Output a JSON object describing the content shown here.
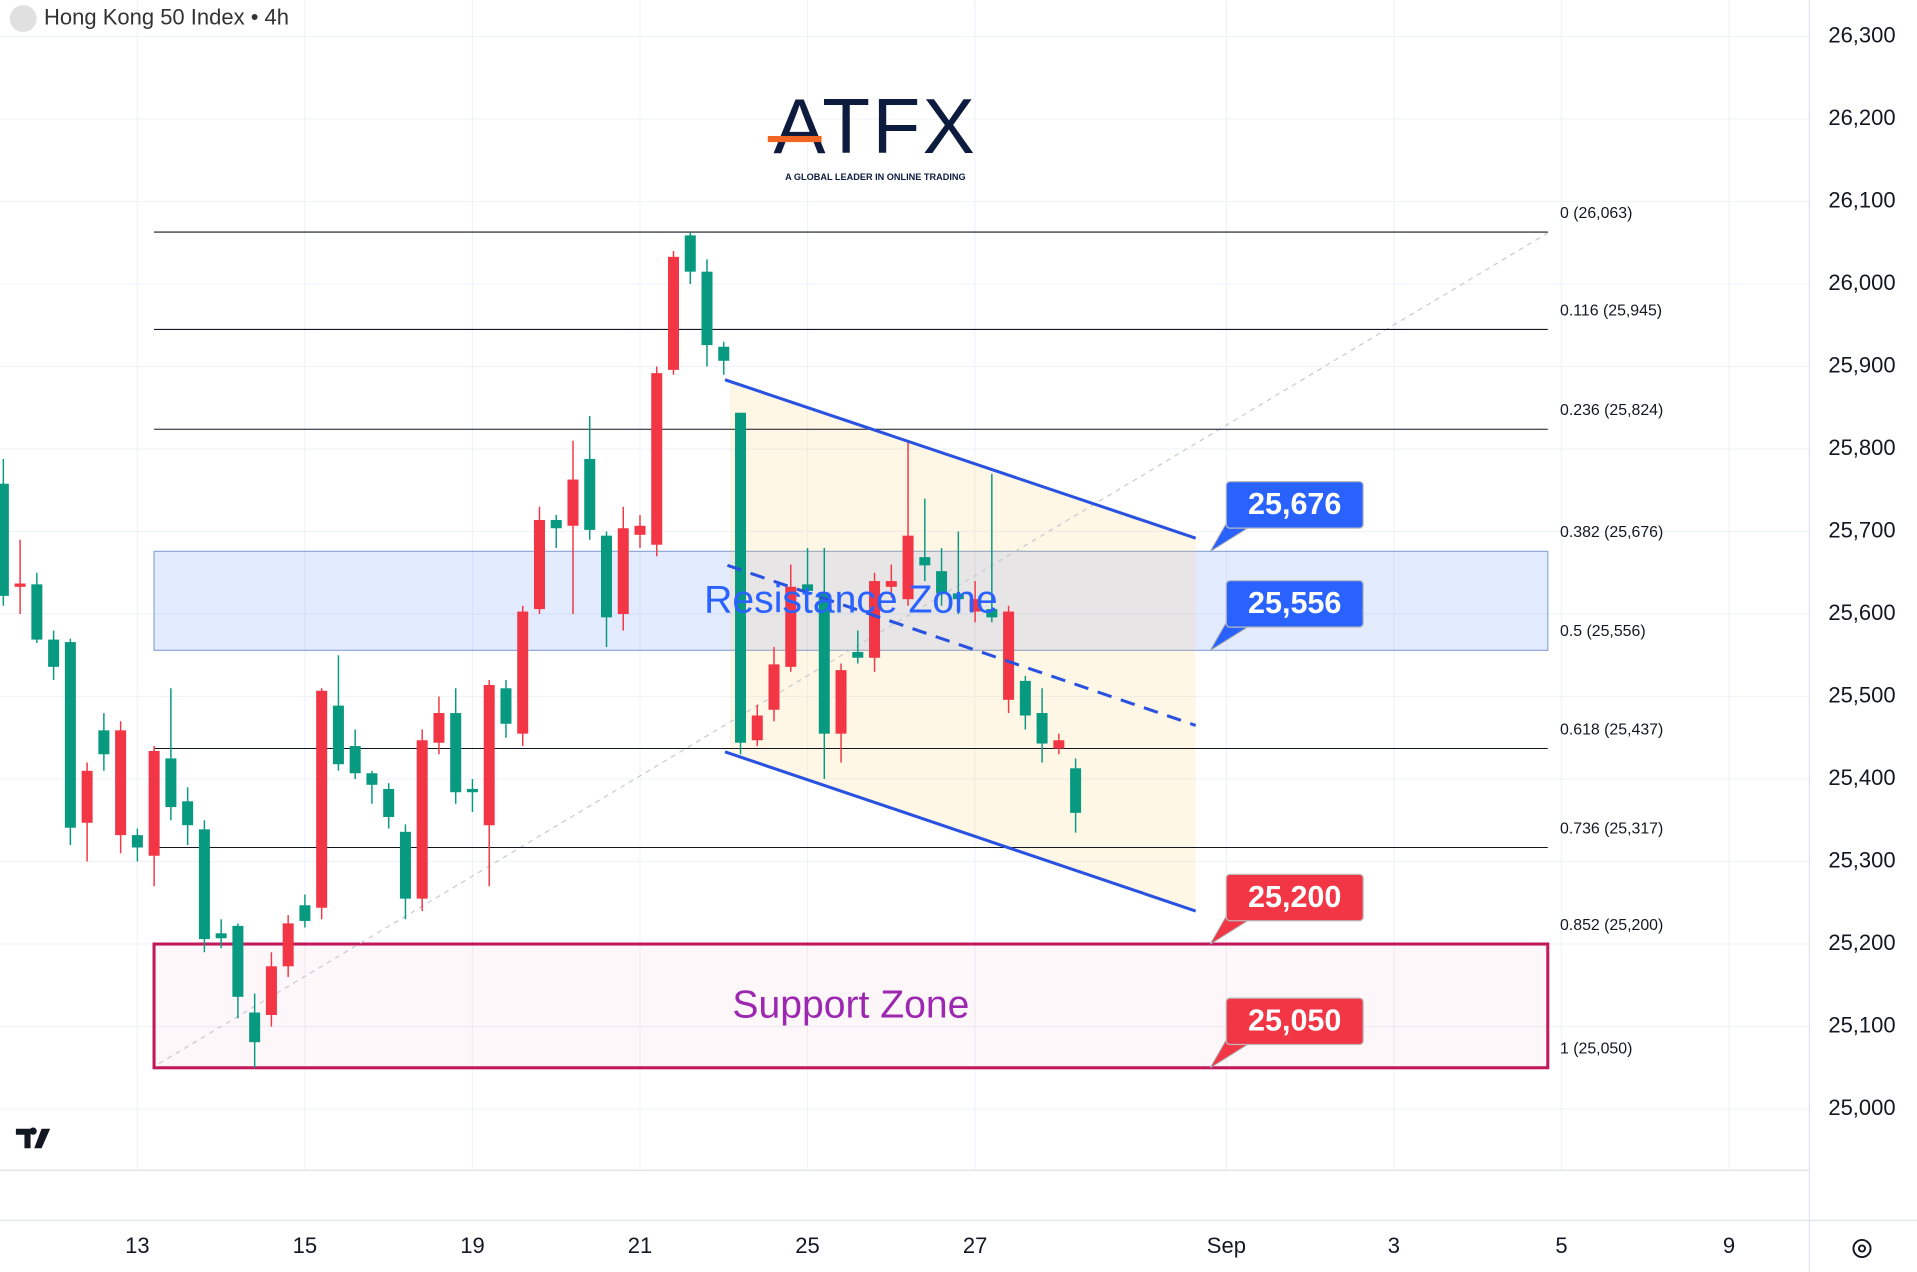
{
  "chart_data": {
    "type": "candlestick",
    "title": "Hong Kong 50 Index • 4h",
    "brand": "ATFX",
    "tagline": "A GLOBAL LEADER IN ONLINE TRADING",
    "up_color": "#089981",
    "down_color": "#f23645",
    "open": [
      25622,
      25637,
      25569,
      25536,
      25341,
      25410,
      25430,
      25459,
      25317,
      25434,
      25366,
      25344,
      25206,
      25207,
      25136,
      25081,
      25173,
      25225,
      25228,
      25507,
      25418,
      25407,
      25393,
      25354,
      25255,
      25447,
      25480,
      25384,
      25384,
      25514,
      25467,
      25603,
      25714,
      25704,
      25763,
      25702,
      25596,
      25704,
      25707,
      25892,
      26033,
      26015,
      25926,
      25907,
      25444,
      25477,
      25539,
      25633,
      25628,
      25455,
      25532,
      25547,
      25640,
      25640,
      25695,
      25659,
      25625,
      25618,
      25618,
      25596,
      25603,
      25477,
      25443,
      25447,
      25359
    ],
    "high": [
      25788,
      25690,
      25650,
      25580,
      25570,
      25420,
      25480,
      25470,
      25340,
      25440,
      25510,
      25390,
      25350,
      25230,
      25225,
      25140,
      25190,
      25235,
      25260,
      25510,
      25550,
      25460,
      25410,
      25395,
      25345,
      25460,
      25500,
      25510,
      25400,
      25520,
      25520,
      25610,
      25730,
      25720,
      25810,
      25840,
      25700,
      25730,
      25720,
      25900,
      26040,
      26063,
      26030,
      25930,
      25844,
      25490,
      25560,
      25660,
      25680,
      25680,
      25540,
      25580,
      25650,
      25660,
      25810,
      25740,
      25680,
      25700,
      25640,
      25770,
      25610,
      25525,
      25510,
      25455,
      25425
    ],
    "low": [
      25610,
      25600,
      25565,
      25520,
      25320,
      25300,
      25410,
      25310,
      25300,
      25270,
      25350,
      25320,
      25190,
      25195,
      25110,
      25050,
      25100,
      25160,
      25220,
      25230,
      25410,
      25400,
      25370,
      25340,
      25230,
      25240,
      25430,
      25370,
      25360,
      25270,
      25450,
      25440,
      25600,
      25680,
      25600,
      25690,
      25560,
      25580,
      25680,
      25670,
      25890,
      26000,
      25900,
      25890,
      25430,
      25440,
      25470,
      25530,
      25620,
      25400,
      25420,
      25540,
      25530,
      25620,
      25610,
      25640,
      25610,
      25600,
      25590,
      25590,
      25480,
      25460,
      25420,
      25430,
      25335
    ],
    "close": [
      25758,
      25633,
      25636,
      25569,
      25566,
      25347,
      25459,
      25332,
      25332,
      25307,
      25425,
      25373,
      25339,
      25213,
      25222,
      25117,
      25114,
      25173,
      25247,
      25244,
      25489,
      25440,
      25407,
      25388,
      25336,
      25255,
      25444,
      25480,
      25388,
      25344,
      25510,
      25455,
      25606,
      25714,
      25707,
      25788,
      25695,
      25600,
      25696,
      25684,
      25896,
      26059,
      26015,
      25924,
      25844,
      25447,
      25484,
      25536,
      25636,
      25625,
      25455,
      25554,
      25547,
      25633,
      25618,
      25669,
      25652,
      25625,
      25603,
      25606,
      25496,
      25519,
      25480,
      25437,
      25413
    ],
    "xlim": [
      -0.2,
      107.8
    ],
    "xticks": [
      {
        "value": 8,
        "label": "13"
      },
      {
        "value": 18,
        "label": "15"
      },
      {
        "value": 28,
        "label": "19"
      },
      {
        "value": 38,
        "label": "21"
      },
      {
        "value": 48,
        "label": "25"
      },
      {
        "value": 58,
        "label": "27"
      },
      {
        "value": 73,
        "label": "Sep"
      },
      {
        "value": 83,
        "label": "3"
      },
      {
        "value": 93,
        "label": "5"
      },
      {
        "value": 103,
        "label": "9"
      }
    ],
    "ylim": [
      24865,
      26344
    ],
    "yticks": [
      {
        "value": 25000,
        "label": "25,000"
      },
      {
        "value": 25100,
        "label": "25,100"
      },
      {
        "value": 25200,
        "label": "25,200"
      },
      {
        "value": 25300,
        "label": "25,300"
      },
      {
        "value": 25400,
        "label": "25,400"
      },
      {
        "value": 25500,
        "label": "25,500"
      },
      {
        "value": 25600,
        "label": "25,600"
      },
      {
        "value": 25700,
        "label": "25,700"
      },
      {
        "value": 25800,
        "label": "25,800"
      },
      {
        "value": 25900,
        "label": "25,900"
      },
      {
        "value": 26000,
        "label": "26,000"
      },
      {
        "value": 26100,
        "label": "26,100"
      },
      {
        "value": 26200,
        "label": "26,200"
      },
      {
        "value": 26300,
        "label": "26,300"
      }
    ],
    "grid": true,
    "fib_levels": [
      {
        "value": 26063,
        "label": "0 (26,063)"
      },
      {
        "value": 25945,
        "label": "0.116 (25,945)"
      },
      {
        "value": 25824,
        "label": "0.236 (25,824)"
      },
      {
        "value": 25676,
        "label": "0.382 (25,676)"
      },
      {
        "value": 25556,
        "label": "0.5 (25,556)"
      },
      {
        "value": 25437,
        "label": "0.618 (25,437)"
      },
      {
        "value": 25317,
        "label": "0.736 (25,317)"
      },
      {
        "value": 25200,
        "label": "0.852 (25,200)"
      },
      {
        "value": 25050,
        "label": "1 (25,050)"
      }
    ],
    "zones": [
      {
        "label": "Resistance Zone",
        "low": 25556,
        "high": 25676,
        "color": "#2962ff"
      },
      {
        "label": "Support Zone",
        "low": 25050,
        "high": 25200,
        "color": "#9c27b0"
      }
    ],
    "callouts": [
      {
        "value": 25676,
        "label": "25,676",
        "color": "#2962ff"
      },
      {
        "value": 25556,
        "label": "25,556",
        "color": "#2962ff"
      },
      {
        "value": 25200,
        "label": "25,200",
        "color": "#f23645"
      },
      {
        "value": 25050,
        "label": "25,050",
        "color": "#f23645"
      }
    ],
    "channel": {
      "upper": [
        25884,
        25692
      ],
      "lower": [
        25433,
        25240
      ],
      "mid": [
        25659,
        25465
      ]
    },
    "trendline": [
      25055,
      26062
    ]
  }
}
